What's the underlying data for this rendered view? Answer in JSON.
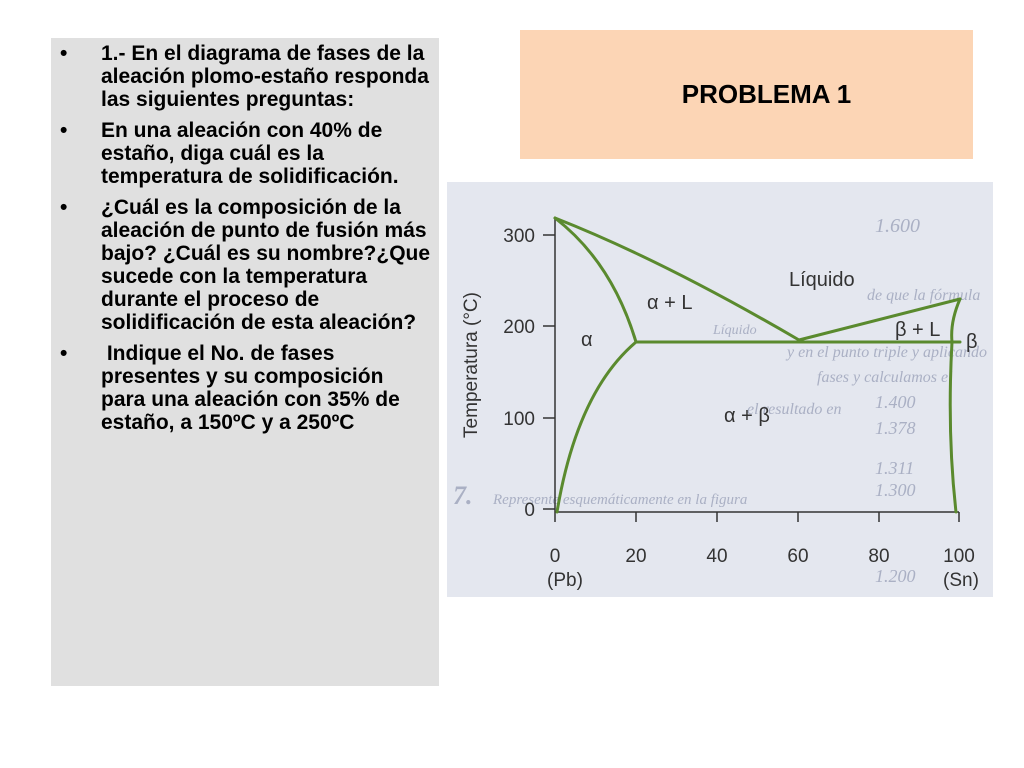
{
  "title": "PROBLEMA 1",
  "bullets": [
    "1.- En el diagrama de fases de la aleación plomo-estaño responda las siguientes preguntas:",
    "En una aleación con 40% de estaño, diga cuál es la temperatura de solidificación.",
    "¿Cuál es la composición de la aleación de punto de fusión más bajo? ¿Cuál es su nombre?¿Que sucede con la temperatura durante el proceso de solidificación de esta aleación?",
    " Indique el No. de fases presentes y su composición para una aleación con 35% de estaño, a 150ºC y a 250ºC"
  ],
  "bullet_symbol": "•",
  "diagram": {
    "y_axis_label": "Temperatura (°C)",
    "y_ticks": [
      "300",
      "200",
      "100",
      "0"
    ],
    "x_ticks": [
      "0",
      "20",
      "40",
      "60",
      "80",
      "100"
    ],
    "x_end_labels": {
      "left": "(Pb)",
      "right": "(Sn)"
    },
    "region_labels": {
      "liquid": "Líquido",
      "alpha_l": "α + L",
      "beta_l": "β + L",
      "alpha": "α",
      "beta": "β",
      "alpha_beta": "α + β"
    },
    "bleed_text": [
      "1.600",
      "de que la fórmula",
      "Líquido",
      "y en el punto triple y aplicando",
      "fases y calculamos el",
      "1.400",
      "el resultado en",
      "1.378",
      "1.311",
      "1.300",
      "7.",
      "Represente esquemáticamente en la figura",
      "1.200"
    ],
    "colors": {
      "curve": "#5a8a2e",
      "axis": "#333333",
      "background": "#e4e7ef",
      "bleed": "#aab0c4"
    }
  },
  "colors": {
    "panel_bg": "#e0e0e0",
    "title_bg": "#fcd5b5"
  }
}
